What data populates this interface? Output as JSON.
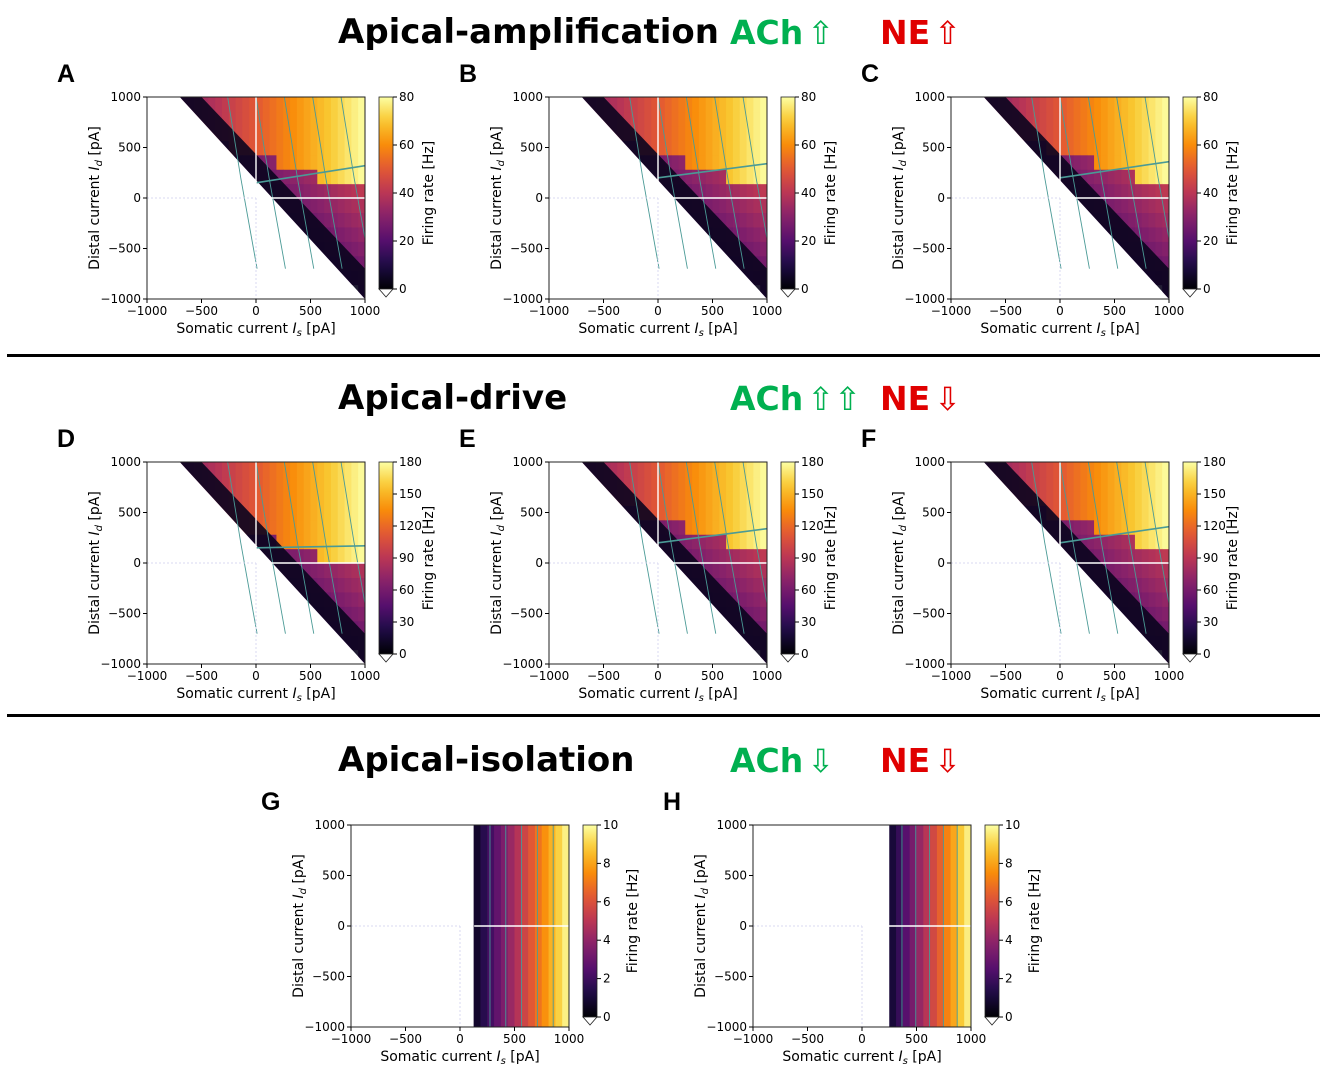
{
  "sections": [
    {
      "title": "Apical-amplification",
      "ach_label": "ACh",
      "ach_arrows": "⇧",
      "ne_label": "NE",
      "ne_arrows": "⇧"
    },
    {
      "title": "Apical-drive",
      "ach_label": "ACh",
      "ach_arrows": "⇧⇧",
      "ne_label": "NE",
      "ne_arrows": "⇩"
    },
    {
      "title": "Apical-isolation",
      "ach_label": "ACh",
      "ach_arrows": "⇩",
      "ne_label": "NE",
      "ne_arrows": "⇩"
    }
  ],
  "colors": {
    "ach": "#00b050",
    "ne": "#e00000",
    "colormap": "inferno",
    "contour": "#4a9a96"
  },
  "common_axes": {
    "xlabel_main": "Somatic current ",
    "xlabel_var": "I",
    "xlabel_sub": "s",
    "xlabel_unit": " [pA]",
    "ylabel_main": "Distal current ",
    "ylabel_var": "I",
    "ylabel_sub": "d",
    "ylabel_unit": " [pA]",
    "xlim": [
      -1000,
      1000
    ],
    "ylim": [
      -1000,
      1000
    ],
    "x_ticks": [
      "−1000",
      "−500",
      "0",
      "500",
      "1000"
    ],
    "y_ticks": [
      "1000",
      "500",
      "0",
      "−500",
      "−1000"
    ],
    "colorbar_label": "Firing rate [Hz]"
  },
  "chart_data": [
    {
      "panel": "A",
      "type": "heatmap",
      "colorbar_ticks": [
        "80",
        "60",
        "40",
        "20",
        "0"
      ],
      "vmax": 80,
      "left_threshold": 0.65,
      "right_threshold": 0.0,
      "bound_low": 150,
      "bound_high": 320
    },
    {
      "panel": "B",
      "type": "heatmap",
      "colorbar_ticks": [
        "80",
        "60",
        "40",
        "20",
        "0"
      ],
      "vmax": 80,
      "left_threshold": 0.72,
      "right_threshold": 0.05,
      "bound_low": 200,
      "bound_high": 340
    },
    {
      "panel": "C",
      "type": "heatmap",
      "colorbar_ticks": [
        "80",
        "60",
        "40",
        "20",
        "0"
      ],
      "vmax": 80,
      "left_threshold": 0.75,
      "right_threshold": 0.1,
      "bound_low": 200,
      "bound_high": 360
    },
    {
      "panel": "D",
      "type": "heatmap",
      "colorbar_ticks": [
        "180",
        "150",
        "120",
        "90",
        "60",
        "30",
        "0"
      ],
      "vmax": 180,
      "left_threshold": 0.65,
      "right_threshold": 0.0,
      "bound_low": 150,
      "bound_high": 170
    },
    {
      "panel": "E",
      "type": "heatmap",
      "colorbar_ticks": [
        "180",
        "150",
        "120",
        "90",
        "60",
        "30",
        "0"
      ],
      "vmax": 180,
      "left_threshold": 0.72,
      "right_threshold": 0.05,
      "bound_low": 200,
      "bound_high": 340
    },
    {
      "panel": "F",
      "type": "heatmap",
      "colorbar_ticks": [
        "180",
        "150",
        "120",
        "90",
        "60",
        "30",
        "0"
      ],
      "vmax": 180,
      "left_threshold": 0.75,
      "right_threshold": 0.1,
      "bound_low": 200,
      "bound_high": 360
    },
    {
      "panel": "G",
      "type": "heatmap",
      "colorbar_ticks": [
        "10",
        "8",
        "6",
        "4",
        "2",
        "0"
      ],
      "vmax": 10,
      "vertical_threshold": 130
    },
    {
      "panel": "H",
      "type": "heatmap",
      "colorbar_ticks": [
        "10",
        "8",
        "6",
        "4",
        "2",
        "0"
      ],
      "vmax": 10,
      "vertical_threshold": 240
    }
  ]
}
